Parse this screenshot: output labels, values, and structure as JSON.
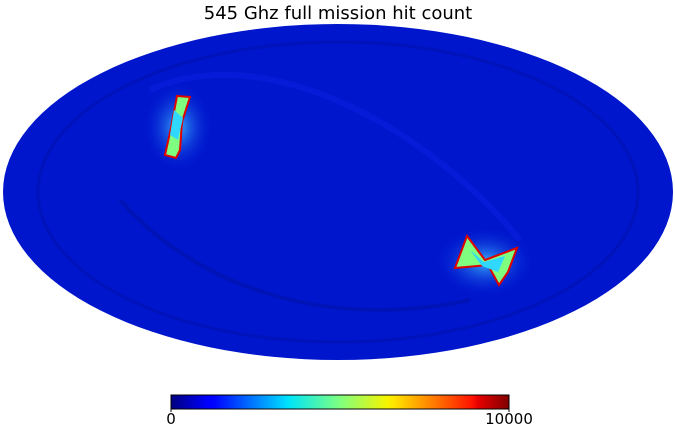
{
  "chart_data": {
    "type": "mollweide",
    "title": "545 Ghz full mission hit count",
    "colormap": "jet",
    "colorbar": {
      "lim": [
        0,
        10000
      ],
      "ticks": [
        0,
        10000
      ]
    }
  }
}
